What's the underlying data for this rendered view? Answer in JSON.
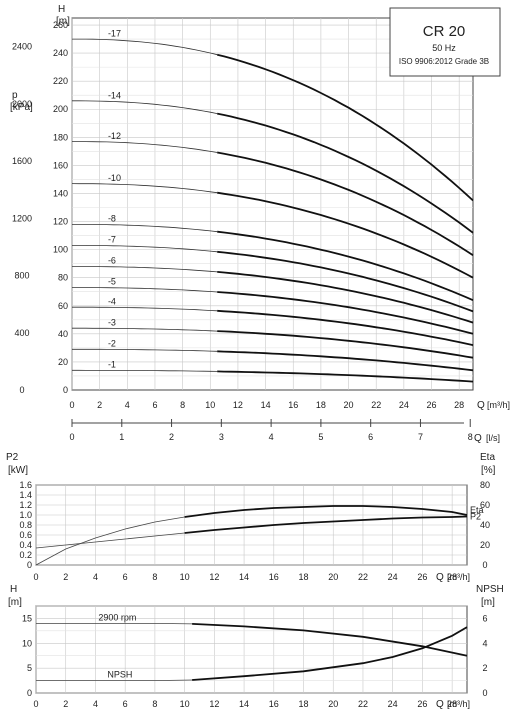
{
  "title_box": {
    "title": "CR 20",
    "freq": "50 Hz",
    "standard": "ISO 9906:2012 Grade 3B"
  },
  "chart_data": [
    {
      "type": "line",
      "id": "head",
      "title": "",
      "ylabel": "H",
      "yunit": "[m]",
      "ylabel2": "p",
      "yunit2": "[kPa]",
      "xlabel": "Q",
      "xunit": "[m³/h]",
      "xlabel2": "Q",
      "xunit2": "[l/s]",
      "xlim": [
        0,
        29
      ],
      "ylim": [
        0,
        265
      ],
      "xticks": [
        0,
        2,
        4,
        6,
        8,
        10,
        12,
        14,
        16,
        18,
        20,
        22,
        24,
        26,
        28
      ],
      "yticks": [
        0,
        20,
        40,
        60,
        80,
        100,
        120,
        140,
        160,
        180,
        200,
        220,
        240,
        260
      ],
      "y2ticks": [
        0,
        400,
        800,
        1200,
        1600,
        2000,
        2400
      ],
      "x2ticks": [
        0,
        1,
        2,
        3,
        4,
        5,
        6,
        7,
        8
      ],
      "grid": true,
      "operating_range_start": 10.5,
      "series": [
        {
          "name": "-17",
          "shutoff": 250,
          "end": 135
        },
        {
          "name": "-14",
          "shutoff": 206,
          "end": 112
        },
        {
          "name": "-12",
          "shutoff": 177,
          "end": 96
        },
        {
          "name": "-10",
          "shutoff": 147,
          "end": 80
        },
        {
          "name": "-8",
          "shutoff": 118,
          "end": 64
        },
        {
          "name": "-7",
          "shutoff": 103,
          "end": 56
        },
        {
          "name": "-6",
          "shutoff": 88,
          "end": 48
        },
        {
          "name": "-5",
          "shutoff": 73,
          "end": 40
        },
        {
          "name": "-4",
          "shutoff": 59,
          "end": 32
        },
        {
          "name": "-3",
          "shutoff": 44,
          "end": 23
        },
        {
          "name": "-2",
          "shutoff": 29,
          "end": 14
        },
        {
          "name": "-1",
          "shutoff": 14,
          "end": 6
        }
      ]
    },
    {
      "type": "line",
      "id": "power",
      "title": "",
      "ylabel": "P2",
      "yunit": "[kW]",
      "ylabel2": "Eta",
      "yunit2": "[%]",
      "xlabel": "Q",
      "xunit": "[m³/h]",
      "xlim": [
        0,
        29
      ],
      "ylim": [
        0,
        1.6
      ],
      "y2lim": [
        0,
        80
      ],
      "xticks": [
        0,
        2,
        4,
        6,
        8,
        10,
        12,
        14,
        16,
        18,
        20,
        22,
        24,
        26,
        28
      ],
      "yticks": [
        0,
        0.2,
        0.4,
        0.6,
        0.8,
        1.0,
        1.2,
        1.4,
        1.6
      ],
      "ytick_labels": [
        "0",
        "0.2",
        "0.4",
        "0.6",
        "0.8",
        "1.0",
        "1.2",
        "1.4",
        "1.6"
      ],
      "y2ticks": [
        0,
        20,
        40,
        60,
        80
      ],
      "grid": true,
      "series": [
        {
          "name": "Eta",
          "axis": "right",
          "x": [
            0,
            2,
            4,
            6,
            8,
            10,
            12,
            14,
            16,
            18,
            20,
            22,
            24,
            26,
            28,
            29
          ],
          "y": [
            0,
            16,
            27,
            36,
            43,
            48,
            52,
            55,
            57,
            58,
            59,
            59,
            58,
            56,
            53,
            50
          ]
        },
        {
          "name": "P2",
          "axis": "left",
          "x": [
            0,
            2,
            4,
            6,
            8,
            10,
            12,
            14,
            16,
            18,
            20,
            22,
            24,
            26,
            28,
            29
          ],
          "y": [
            0.34,
            0.4,
            0.46,
            0.52,
            0.58,
            0.64,
            0.7,
            0.75,
            0.8,
            0.84,
            0.87,
            0.9,
            0.93,
            0.95,
            0.96,
            0.97
          ]
        }
      ]
    },
    {
      "type": "line",
      "id": "npsh",
      "title": "",
      "ylabel": "H",
      "yunit": "[m]",
      "ylabel2": "NPSH",
      "yunit2": "[m]",
      "xlabel": "Q",
      "xunit": "[m³/h]",
      "xlim": [
        0,
        29
      ],
      "ylim": [
        0,
        17.5
      ],
      "y2lim": [
        0,
        7
      ],
      "xticks": [
        0,
        2,
        4,
        6,
        8,
        10,
        12,
        14,
        16,
        18,
        20,
        22,
        24,
        26,
        28
      ],
      "yticks": [
        0,
        5,
        10,
        15
      ],
      "y2ticks": [
        0,
        2,
        4,
        6
      ],
      "grid": true,
      "series": [
        {
          "name": "2900 rpm",
          "axis": "left",
          "x": [
            0,
            4,
            8,
            10.5,
            14,
            18,
            22,
            26,
            29
          ],
          "y": [
            14.0,
            14.0,
            14.0,
            13.9,
            13.4,
            12.6,
            11.3,
            9.4,
            7.5
          ]
        },
        {
          "name": "NPSH",
          "axis": "right",
          "x": [
            0,
            4,
            8,
            10.5,
            14,
            18,
            22,
            24,
            26,
            28,
            29
          ],
          "y": [
            1.0,
            1.0,
            1.0,
            1.05,
            1.35,
            1.75,
            2.4,
            2.9,
            3.6,
            4.6,
            5.3
          ]
        }
      ]
    }
  ]
}
